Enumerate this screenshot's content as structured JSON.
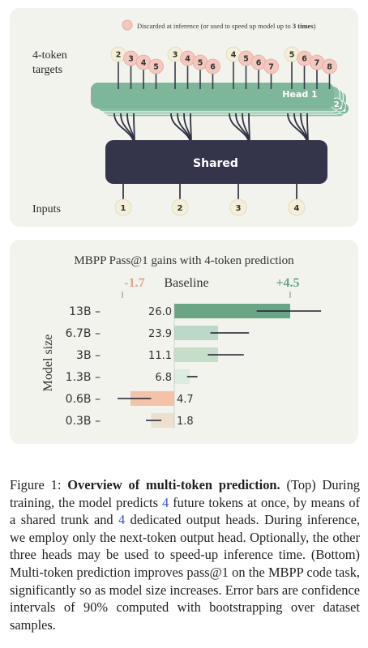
{
  "top": {
    "legend_prefix": "Discarded at inference (or used to speed up model up to ",
    "legend_bold": "3 times",
    "legend_suffix": ")",
    "targets_label_1": "4-token",
    "targets_label_2": "targets",
    "inputs_label": "Inputs",
    "shared_label": "Shared",
    "head_label": "Head 1",
    "head_numbers": [
      "2",
      "3",
      "4"
    ],
    "inputs": [
      "1",
      "2",
      "3",
      "4"
    ],
    "target_groups": [
      [
        "2",
        "3",
        "4",
        "5"
      ],
      [
        "3",
        "4",
        "5",
        "6"
      ],
      [
        "4",
        "5",
        "6",
        "7"
      ],
      [
        "5",
        "6",
        "7",
        "8"
      ]
    ],
    "colors": {
      "trunk": "#34354b",
      "head": "#7eb69a",
      "token": "#f5efd9",
      "discarded": "#f4c7bf"
    }
  },
  "chart_data": {
    "type": "bar",
    "title": "MBPP Pass@1  gains with 4-token prediction",
    "ylabel": "Model size",
    "baseline_label": "Baseline",
    "neg_label": "-1.7",
    "pos_label": "+4.5",
    "categories": [
      "13B",
      "6.7B",
      "3B",
      "1.3B",
      "0.6B",
      "0.3B"
    ],
    "baseline": [
      26.0,
      23.9,
      11.1,
      6.8,
      4.7,
      1.8
    ],
    "baseline_labels": [
      "26.0",
      "23.9",
      "11.1",
      "6.8",
      "4.7",
      "1.8"
    ],
    "gains": [
      4.5,
      1.7,
      1.7,
      0.6,
      -1.7,
      -0.9
    ],
    "errors": [
      [
        3.2,
        5.7
      ],
      [
        1.4,
        2.9
      ],
      [
        1.3,
        2.7
      ],
      [
        0.5,
        0.9
      ],
      [
        -2.2,
        -0.9
      ],
      [
        -1.1,
        -0.5
      ]
    ],
    "xlim": [
      -1.7,
      4.5
    ],
    "colors": [
      "#6aa586",
      "#bcd8c6",
      "#c6dec9",
      "#dcecdf",
      "#f4c2a8",
      "#ede0cf"
    ]
  },
  "caption": {
    "fig": "Figure 1: ",
    "title": "Overview of multi-token prediction.",
    "p1": " (Top) During training, the model predicts ",
    "n1": "4",
    "p2": " future tokens at once, by means of a shared trunk and ",
    "n2": "4",
    "p3": " dedicated output heads. During inference, we employ only the next-token output head. Optionally, the other three heads may be used to speed-up inference time. (Bottom) Multi-token prediction improves pass@1 on the MBPP code task, significantly so as model size increases. Error bars are confidence intervals of 90% computed with bootstrapping over dataset samples."
  }
}
